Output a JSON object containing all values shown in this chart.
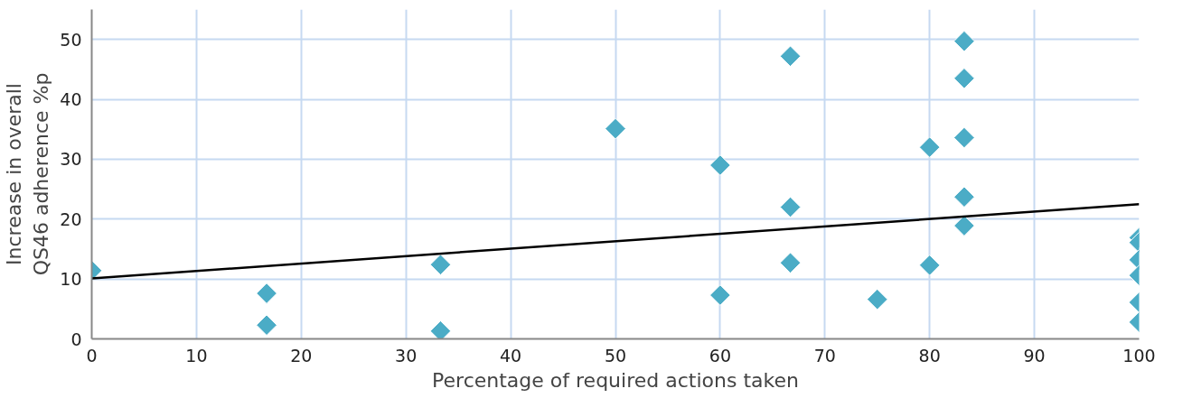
{
  "chart_data": {
    "type": "scatter",
    "xlabel": "Percentage of required actions taken",
    "ylabel": "Increase in overall QS46 adherence %p",
    "marker": "diamond",
    "grid": true,
    "xlim": [
      0,
      100
    ],
    "xticks": [
      0,
      10,
      20,
      30,
      40,
      50,
      60,
      70,
      80,
      90,
      100
    ],
    "ylim": [
      0,
      55
    ],
    "yticks": [
      0,
      10,
      20,
      30,
      40,
      50
    ],
    "series": [
      {
        "color": "#4bacc6",
        "x": [
          0,
          16.7,
          16.7,
          33.3,
          33.3,
          50,
          60,
          60,
          66.7,
          66.7,
          66.7,
          75,
          80,
          80,
          83.3,
          83.3,
          83.3,
          83.3,
          83.3,
          100,
          100,
          100,
          100,
          100,
          100
        ],
        "values": [
          11.4,
          7.6,
          2.3,
          12.4,
          1.3,
          35.1,
          29,
          7.3,
          47.2,
          22,
          12.7,
          6.6,
          32,
          12.3,
          49.7,
          43.5,
          33.6,
          23.7,
          18.9,
          16.9,
          16.1,
          13.2,
          10.6,
          6.1,
          2.8
        ]
      },
      {
        "type": "line",
        "color": "#000000",
        "marker": "none",
        "x": [
          0,
          100
        ],
        "values": [
          10.1,
          22.5
        ]
      }
    ]
  }
}
